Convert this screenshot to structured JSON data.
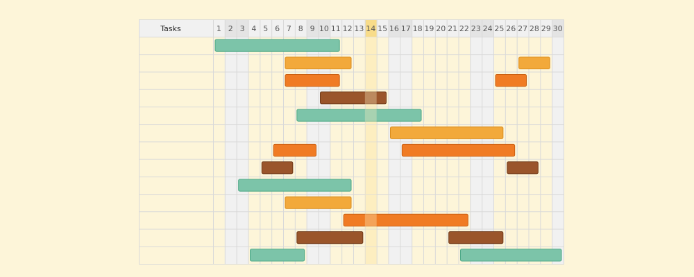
{
  "header": {
    "tasks_label": "Tasks"
  },
  "days": [
    "1",
    "2",
    "3",
    "4",
    "5",
    "6",
    "7",
    "8",
    "9",
    "10",
    "11",
    "12",
    "13",
    "14",
    "15",
    "16",
    "17",
    "18",
    "19",
    "20",
    "21",
    "22",
    "23",
    "24",
    "25",
    "26",
    "27",
    "28",
    "29",
    "30"
  ],
  "weekend_days": [
    2,
    3,
    9,
    10,
    16,
    17,
    23,
    24,
    30
  ],
  "today": 14,
  "colors": {
    "background": "#fdf5d9",
    "grid_line": "#d9d9d9",
    "header_bg": "#f1f1f1",
    "weekend_bg": "#f1f1f1",
    "today_bg": "#fdeec0",
    "today_header_bg": "#f8dc8a",
    "teal": "#7cc4a9",
    "teal_border": "#4ca886",
    "amber": "#f2a93b",
    "amber_border": "#d98c1d",
    "orange": "#f07b24",
    "orange_border": "#c95f12",
    "brown": "#9a552b",
    "brown_border": "#6f3a1a"
  },
  "rows": [
    {
      "bars": [
        {
          "start": 1,
          "end": 11,
          "color": "teal"
        }
      ]
    },
    {
      "bars": [
        {
          "start": 7,
          "end": 12,
          "color": "amber"
        },
        {
          "start": 27,
          "end": 29,
          "color": "amber"
        }
      ]
    },
    {
      "bars": [
        {
          "start": 7,
          "end": 11,
          "color": "orange"
        },
        {
          "start": 25,
          "end": 27,
          "color": "orange"
        }
      ]
    },
    {
      "bars": [
        {
          "start": 10,
          "end": 15,
          "color": "brown"
        }
      ]
    },
    {
      "bars": [
        {
          "start": 8,
          "end": 18,
          "color": "teal"
        }
      ]
    },
    {
      "bars": [
        {
          "start": 16,
          "end": 25,
          "color": "amber"
        }
      ]
    },
    {
      "bars": [
        {
          "start": 6,
          "end": 9,
          "color": "orange"
        },
        {
          "start": 17,
          "end": 26,
          "color": "orange"
        }
      ]
    },
    {
      "bars": [
        {
          "start": 5,
          "end": 7,
          "color": "brown"
        },
        {
          "start": 26,
          "end": 28,
          "color": "brown"
        }
      ]
    },
    {
      "bars": [
        {
          "start": 3,
          "end": 12,
          "color": "teal"
        }
      ]
    },
    {
      "bars": [
        {
          "start": 7,
          "end": 12,
          "color": "amber"
        }
      ]
    },
    {
      "bars": [
        {
          "start": 12,
          "end": 22,
          "color": "orange"
        }
      ]
    },
    {
      "bars": [
        {
          "start": 8,
          "end": 13,
          "color": "brown"
        },
        {
          "start": 21,
          "end": 25,
          "color": "brown"
        }
      ]
    },
    {
      "bars": [
        {
          "start": 4,
          "end": 8,
          "color": "teal"
        },
        {
          "start": 22,
          "end": 30,
          "color": "teal"
        }
      ]
    }
  ]
}
